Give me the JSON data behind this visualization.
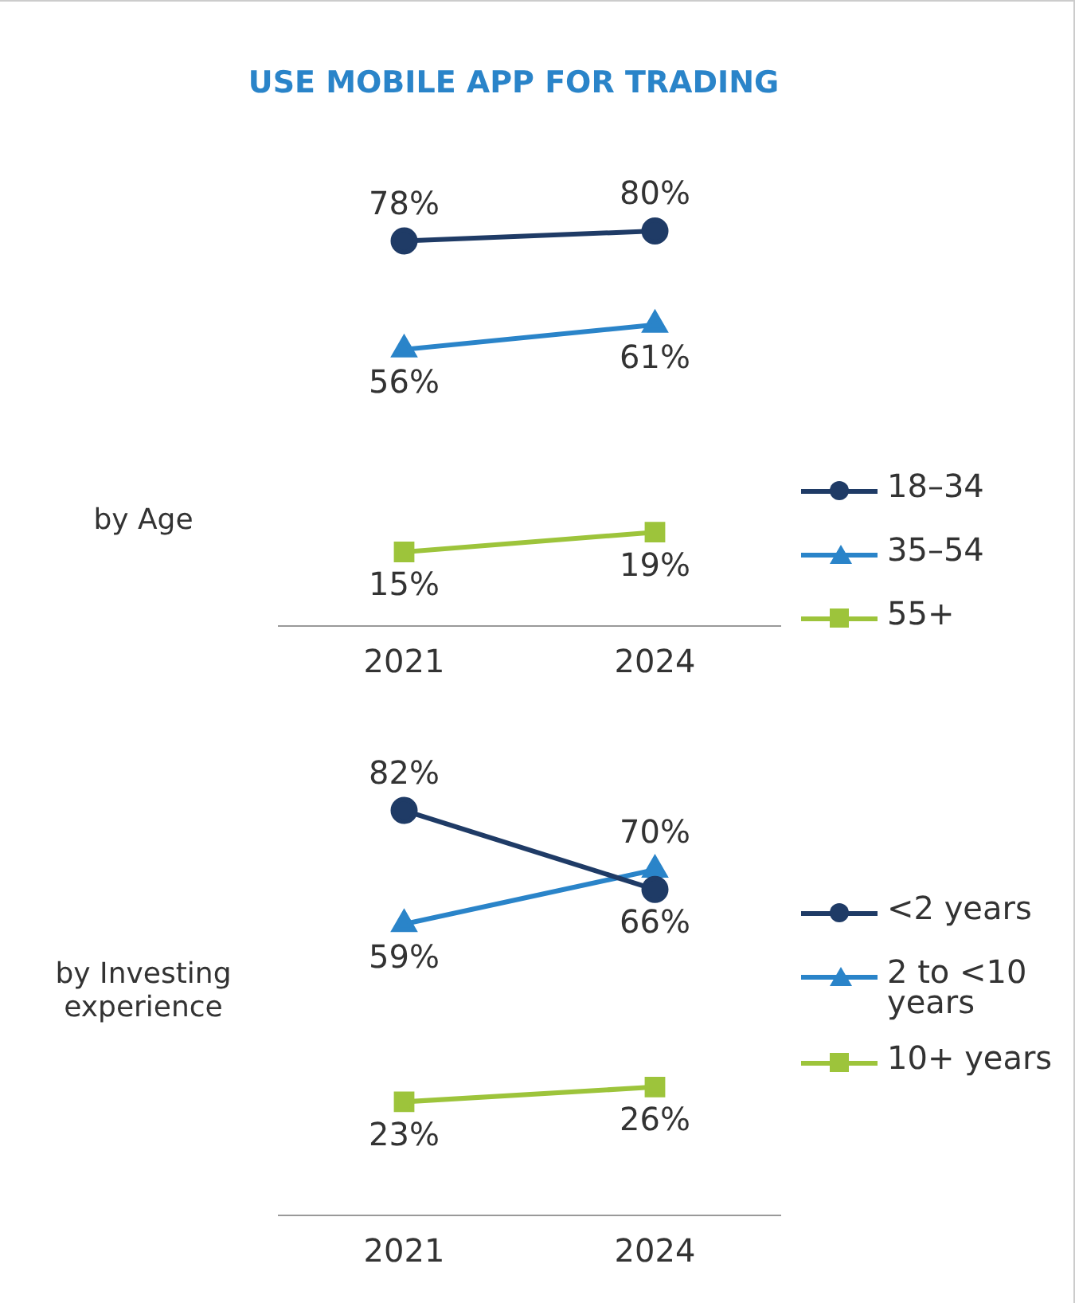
{
  "chart_data": [
    {
      "type": "line",
      "title": "USE MOBILE APP FOR TRADING",
      "ylabel": "by Age",
      "categories": [
        "2021",
        "2024"
      ],
      "tick_labels": "x",
      "grid": false,
      "legend": "right",
      "series": [
        {
          "name": "18–34",
          "color": "#1f3b66",
          "marker": "circle",
          "values": [
            78,
            80
          ],
          "value_labels": [
            "78%",
            "80%"
          ]
        },
        {
          "name": "35–54",
          "color": "#2a84c9",
          "marker": "triangle",
          "values": [
            56,
            61
          ],
          "value_labels": [
            "56%",
            "61%"
          ]
        },
        {
          "name": "55+",
          "color": "#9dc43b",
          "marker": "square",
          "values": [
            15,
            19
          ],
          "value_labels": [
            "15%",
            "19%"
          ]
        }
      ]
    },
    {
      "type": "line",
      "ylabel": "by Investing experience",
      "categories": [
        "2021",
        "2024"
      ],
      "tick_labels": "x",
      "grid": false,
      "legend": "right",
      "series": [
        {
          "name": "<2 years",
          "color": "#1f3b66",
          "marker": "circle",
          "values": [
            82,
            66
          ],
          "value_labels": [
            "82%",
            "66%"
          ]
        },
        {
          "name": "2 to <10 years",
          "color": "#2a84c9",
          "marker": "triangle",
          "values": [
            59,
            70
          ],
          "value_labels": [
            "59%",
            "70%"
          ]
        },
        {
          "name": "10+ years",
          "color": "#9dc43b",
          "marker": "square",
          "values": [
            23,
            26
          ],
          "value_labels": [
            "23%",
            "26%"
          ]
        }
      ]
    }
  ]
}
